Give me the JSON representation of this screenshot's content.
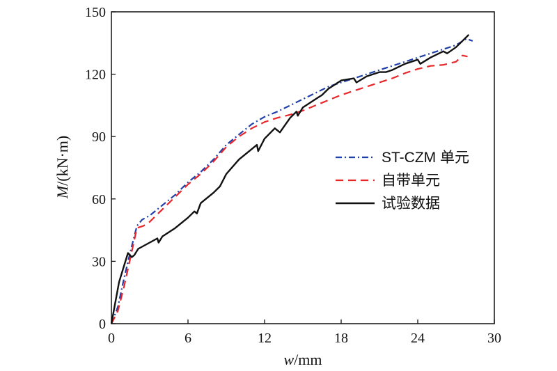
{
  "chart_data": {
    "type": "line",
    "title": "",
    "xlabel": "w/mm",
    "ylabel": "M/(kN·m)",
    "xlabel_parts": {
      "symbol": "w",
      "unit": "/mm"
    },
    "ylabel_parts": {
      "symbol": "M",
      "unit": "/(kN·m)"
    },
    "xlim": [
      0,
      30
    ],
    "ylim": [
      0,
      150
    ],
    "xticks": [
      0,
      6,
      12,
      18,
      24,
      30
    ],
    "yticks": [
      0,
      30,
      60,
      90,
      120,
      150
    ],
    "xtick_labels": [
      "0",
      "6",
      "12",
      "18",
      "24",
      "30"
    ],
    "ytick_labels": [
      "0",
      "30",
      "60",
      "90",
      "120",
      "150"
    ],
    "grid": false,
    "legend_position": "right",
    "series": [
      {
        "name": "ST-CZM 单元",
        "color": "#1f3fa8",
        "dash": "dashdot",
        "points": [
          [
            0,
            0
          ],
          [
            0.5,
            8
          ],
          [
            1,
            22
          ],
          [
            1.5,
            35
          ],
          [
            2,
            47
          ],
          [
            2.4,
            50
          ],
          [
            3,
            52
          ],
          [
            4,
            57
          ],
          [
            5,
            62
          ],
          [
            6,
            68
          ],
          [
            7,
            73
          ],
          [
            8,
            79
          ],
          [
            9,
            86
          ],
          [
            10,
            91
          ],
          [
            11,
            96
          ],
          [
            12,
            99.5
          ],
          [
            13,
            102
          ],
          [
            14,
            105
          ],
          [
            15,
            108
          ],
          [
            16,
            111
          ],
          [
            17,
            114
          ],
          [
            18,
            116
          ],
          [
            19,
            118
          ],
          [
            20,
            120
          ],
          [
            21,
            122
          ],
          [
            22,
            124
          ],
          [
            23,
            126
          ],
          [
            24,
            128
          ],
          [
            25,
            130
          ],
          [
            26,
            132
          ],
          [
            27,
            134
          ],
          [
            27.8,
            137
          ],
          [
            28.3,
            136
          ]
        ]
      },
      {
        "name": "自带单元",
        "color": "#e8262a",
        "dash": "dashed",
        "points": [
          [
            0,
            0
          ],
          [
            0.5,
            6
          ],
          [
            1,
            18
          ],
          [
            1.5,
            32
          ],
          [
            2,
            46
          ],
          [
            2.5,
            47
          ],
          [
            3,
            49
          ],
          [
            4,
            55
          ],
          [
            5,
            61
          ],
          [
            6,
            67
          ],
          [
            7,
            72
          ],
          [
            8,
            78
          ],
          [
            9,
            85
          ],
          [
            10,
            90
          ],
          [
            11,
            94
          ],
          [
            12,
            97
          ],
          [
            13,
            99
          ],
          [
            14,
            100.5
          ],
          [
            15,
            102.5
          ],
          [
            16,
            105
          ],
          [
            17,
            107.5
          ],
          [
            18,
            110
          ],
          [
            19,
            112
          ],
          [
            20,
            114
          ],
          [
            21,
            116
          ],
          [
            22,
            118
          ],
          [
            23,
            120.5
          ],
          [
            24,
            122.5
          ],
          [
            25,
            124
          ],
          [
            26,
            124.5
          ],
          [
            27,
            126
          ],
          [
            27.5,
            129
          ],
          [
            27.9,
            128.5
          ]
        ]
      },
      {
        "name": "试验数据",
        "color": "#111111",
        "dash": "solid",
        "points": [
          [
            0,
            0
          ],
          [
            0.3,
            10
          ],
          [
            0.6,
            20
          ],
          [
            1,
            28
          ],
          [
            1.3,
            34
          ],
          [
            1.6,
            32
          ],
          [
            1.8,
            33
          ],
          [
            2.1,
            36
          ],
          [
            3,
            39
          ],
          [
            3.6,
            41
          ],
          [
            3.7,
            39
          ],
          [
            4,
            42
          ],
          [
            5,
            46
          ],
          [
            6,
            51
          ],
          [
            6.5,
            54
          ],
          [
            6.7,
            53
          ],
          [
            7,
            58
          ],
          [
            8,
            63
          ],
          [
            8.5,
            66
          ],
          [
            9,
            72
          ],
          [
            10,
            79
          ],
          [
            11,
            84
          ],
          [
            11.4,
            86
          ],
          [
            11.5,
            83
          ],
          [
            12,
            89
          ],
          [
            12.8,
            94
          ],
          [
            13.2,
            92
          ],
          [
            14,
            99
          ],
          [
            14.5,
            102
          ],
          [
            14.6,
            100
          ],
          [
            15,
            104
          ],
          [
            16,
            108
          ],
          [
            16.5,
            110
          ],
          [
            17,
            113
          ],
          [
            18,
            117
          ],
          [
            19,
            118
          ],
          [
            19.2,
            116
          ],
          [
            20,
            119
          ],
          [
            21,
            121
          ],
          [
            21.5,
            121
          ],
          [
            22,
            122
          ],
          [
            23,
            125
          ],
          [
            24,
            127
          ],
          [
            24.2,
            125
          ],
          [
            25,
            128
          ],
          [
            26,
            131
          ],
          [
            26.3,
            130
          ],
          [
            27,
            133
          ],
          [
            27.5,
            136
          ],
          [
            28,
            139
          ]
        ]
      }
    ]
  }
}
